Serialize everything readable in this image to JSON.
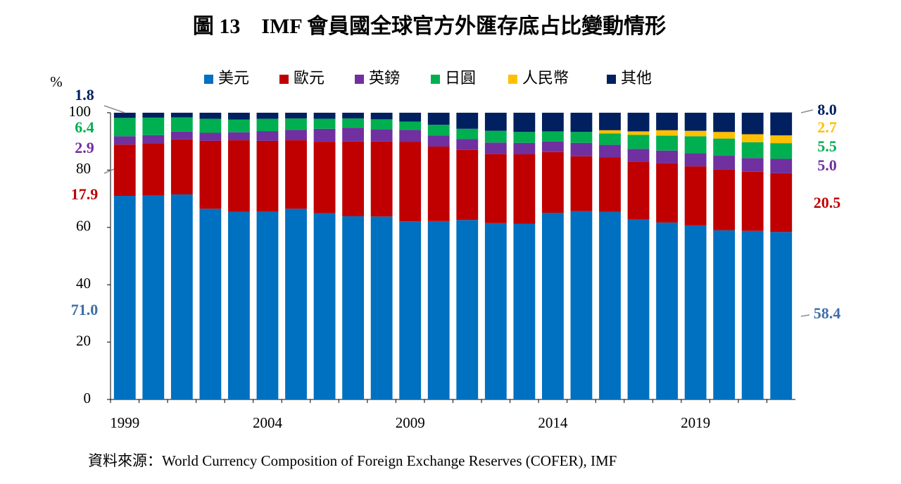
{
  "chart_data": {
    "type": "stacked_bar",
    "title": "圖 13　IMF 會員國全球官方外匯存底占比變動情形",
    "y_label": "%",
    "source": "資料來源：World Currency Composition of Foreign Exchange Reserves (COFER), IMF",
    "categories": [
      "1999",
      null,
      null,
      null,
      null,
      "2004",
      null,
      null,
      null,
      null,
      "2009",
      null,
      null,
      null,
      null,
      "2014",
      null,
      null,
      null,
      null,
      "2019",
      null,
      null,
      null
    ],
    "ylim": [
      0,
      100
    ],
    "yticks": [
      0,
      20,
      40,
      60,
      80,
      100
    ],
    "series": [
      {
        "name": "美元",
        "color": "#0070c0",
        "values": [
          71.0,
          71.1,
          71.5,
          66.5,
          65.4,
          65.5,
          66.5,
          65.0,
          63.9,
          63.8,
          62.1,
          62.2,
          62.6,
          61.5,
          61.3,
          65.1,
          65.7,
          65.4,
          62.7,
          61.7,
          60.7,
          59.0,
          58.8,
          58.4
        ],
        "value_labels": [
          "71.0",
          null,
          null,
          null,
          null,
          null,
          null,
          null,
          null,
          null,
          null,
          null,
          null,
          null,
          null,
          null,
          null,
          null,
          null,
          null,
          null,
          null,
          null,
          "58.4"
        ]
      },
      {
        "name": "歐元",
        "color": "#c00000",
        "values": [
          17.9,
          18.3,
          19.2,
          23.7,
          25.0,
          24.7,
          23.9,
          24.9,
          26.1,
          26.2,
          27.7,
          26.0,
          24.4,
          24.1,
          24.2,
          21.2,
          19.1,
          19.1,
          20.2,
          20.7,
          20.6,
          21.3,
          20.6,
          20.5
        ],
        "value_labels": [
          "17.9",
          null,
          null,
          null,
          null,
          null,
          null,
          null,
          null,
          null,
          null,
          null,
          null,
          null,
          null,
          null,
          null,
          null,
          null,
          null,
          null,
          null,
          null,
          "20.5"
        ]
      },
      {
        "name": "英鎊",
        "color": "#7030a0",
        "values": [
          2.9,
          2.8,
          2.7,
          2.8,
          2.8,
          3.4,
          3.6,
          4.5,
          4.8,
          4.2,
          4.2,
          3.9,
          3.8,
          4.0,
          4.0,
          3.7,
          4.7,
          4.3,
          4.5,
          4.4,
          4.6,
          4.7,
          4.8,
          5.0
        ],
        "value_labels": [
          "2.9",
          null,
          null,
          null,
          null,
          null,
          null,
          null,
          null,
          null,
          null,
          null,
          null,
          null,
          null,
          null,
          null,
          null,
          null,
          null,
          null,
          null,
          null,
          "5.0"
        ]
      },
      {
        "name": "日圓",
        "color": "#00b050",
        "values": [
          6.4,
          6.1,
          5.0,
          4.9,
          4.4,
          4.3,
          4.0,
          3.5,
          3.2,
          3.5,
          2.9,
          3.7,
          3.6,
          4.1,
          3.8,
          3.5,
          3.8,
          4.0,
          4.9,
          5.2,
          5.9,
          6.0,
          5.5,
          5.5
        ],
        "value_labels": [
          "6.4",
          null,
          null,
          null,
          null,
          null,
          null,
          null,
          null,
          null,
          null,
          null,
          null,
          null,
          null,
          null,
          null,
          null,
          null,
          null,
          null,
          null,
          null,
          "5.5"
        ]
      },
      {
        "name": "人民幣",
        "color": "#ffc000",
        "values": [
          null,
          null,
          null,
          null,
          null,
          null,
          null,
          null,
          null,
          null,
          null,
          null,
          null,
          null,
          null,
          null,
          null,
          1.1,
          1.2,
          1.9,
          1.9,
          2.3,
          2.8,
          2.7
        ],
        "value_labels": [
          null,
          null,
          null,
          null,
          null,
          null,
          null,
          null,
          null,
          null,
          null,
          null,
          null,
          null,
          null,
          null,
          null,
          null,
          null,
          null,
          null,
          null,
          null,
          "2.7"
        ]
      },
      {
        "name": "其他",
        "color": "#002060",
        "values": [
          1.8,
          1.7,
          1.6,
          2.1,
          2.4,
          2.1,
          2.0,
          2.1,
          2.0,
          2.3,
          3.1,
          4.2,
          5.6,
          6.3,
          6.7,
          6.5,
          6.7,
          6.1,
          6.5,
          6.1,
          6.3,
          6.7,
          7.5,
          8.0
        ],
        "value_labels": [
          "1.8",
          null,
          null,
          null,
          null,
          null,
          null,
          null,
          null,
          null,
          null,
          null,
          null,
          null,
          null,
          null,
          null,
          null,
          null,
          null,
          null,
          null,
          null,
          "8.0"
        ]
      }
    ]
  }
}
